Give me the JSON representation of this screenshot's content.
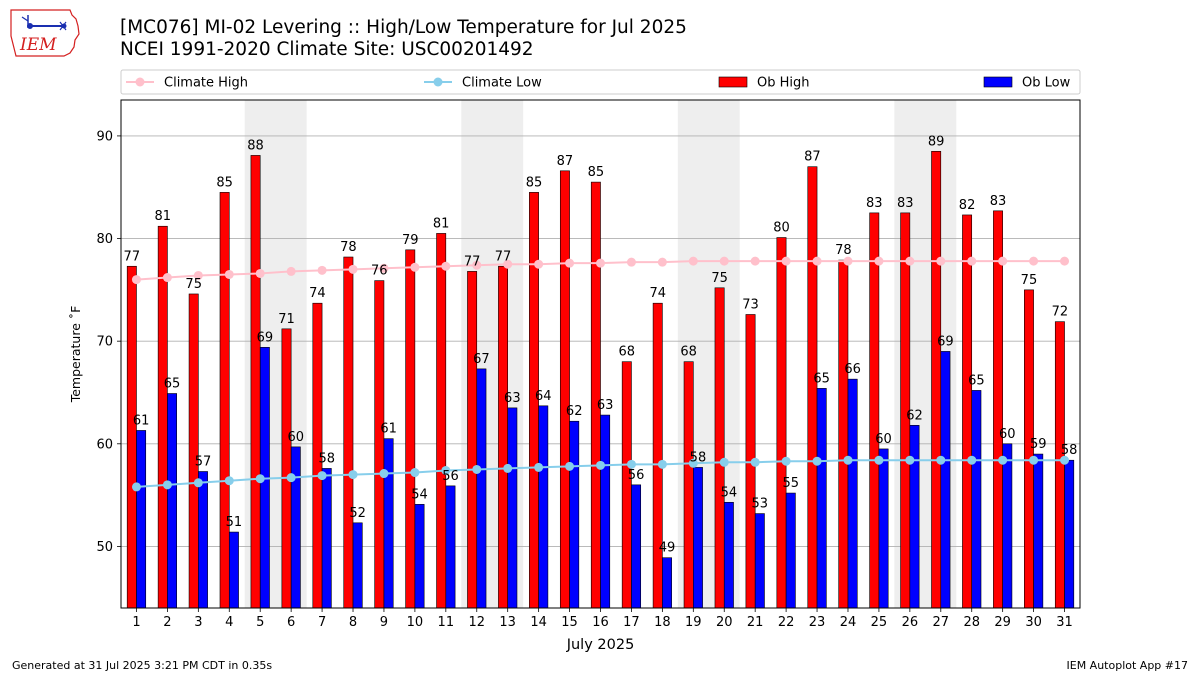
{
  "header": {
    "title": "[MC076] MI-02 Levering  :: High/Low Temperature for Jul 2025",
    "subtitle": "NCEI 1991-2020 Climate Site: USC00201492",
    "logo_text": "IEM"
  },
  "footer": {
    "left": "Generated at 31 Jul 2025 3:21 PM CDT in 0.35s",
    "right": "IEM Autoplot App #17"
  },
  "colors": {
    "ob_high": "#ff0000",
    "ob_low": "#0000ff",
    "climate_high": "#ffc0cb",
    "climate_low": "#87ceeb",
    "weekend_band": "#eeeeee",
    "grid": "#b0b0b0",
    "logo": "#d42020",
    "logo_icon": "#1a2fb0"
  },
  "chart_data": {
    "type": "bar",
    "xlabel": "July 2025",
    "ylabel": "Temperature ˚F",
    "ylim": [
      44,
      93.5
    ],
    "yticks": [
      50,
      60,
      70,
      80,
      90
    ],
    "grid": true,
    "legend_position": "top",
    "categories": [
      1,
      2,
      3,
      4,
      5,
      6,
      7,
      8,
      9,
      10,
      11,
      12,
      13,
      14,
      15,
      16,
      17,
      18,
      19,
      20,
      21,
      22,
      23,
      24,
      25,
      26,
      27,
      28,
      29,
      30,
      31
    ],
    "weekend_bands": [
      [
        5,
        6
      ],
      [
        12,
        13
      ],
      [
        19,
        20
      ],
      [
        26,
        27
      ]
    ],
    "series": [
      {
        "name": "Ob High",
        "type": "bar",
        "values": [
          77.3,
          81.2,
          74.6,
          84.5,
          88.1,
          71.2,
          73.7,
          78.2,
          75.9,
          78.9,
          80.5,
          76.8,
          77.3,
          84.5,
          86.6,
          85.5,
          68.0,
          73.7,
          68.0,
          75.2,
          72.6,
          80.1,
          87.0,
          77.9,
          82.5,
          82.5,
          88.5,
          82.3,
          82.7,
          75.0,
          71.9
        ],
        "labels": [
          "77",
          "81",
          "75",
          "85",
          "88",
          "71",
          "74",
          "78",
          "76",
          "79",
          "81",
          "77",
          "77",
          "85",
          "87",
          "85",
          "68",
          "74",
          "68",
          "75",
          "73",
          "80",
          "87",
          "78",
          "83",
          "83",
          "89",
          "82",
          "83",
          "75",
          "72"
        ]
      },
      {
        "name": "Ob Low",
        "type": "bar",
        "values": [
          61.3,
          64.9,
          57.3,
          51.4,
          69.4,
          59.7,
          57.6,
          52.3,
          60.5,
          54.1,
          55.9,
          67.3,
          63.5,
          63.7,
          62.2,
          62.8,
          56.0,
          48.9,
          57.7,
          54.3,
          53.2,
          55.2,
          65.4,
          66.3,
          59.5,
          61.8,
          69.0,
          65.2,
          60.0,
          59.0,
          58.4
        ],
        "labels": [
          "61",
          "65",
          "57",
          "51",
          "69",
          "60",
          "58",
          "52",
          "61",
          "54",
          "56",
          "67",
          "63",
          "64",
          "62",
          "63",
          "56",
          "49",
          "58",
          "54",
          "53",
          "55",
          "65",
          "66",
          "60",
          "62",
          "69",
          "65",
          "60",
          "59",
          "58"
        ]
      },
      {
        "name": "Climate High",
        "type": "line",
        "values": [
          76.0,
          76.2,
          76.4,
          76.5,
          76.6,
          76.8,
          76.9,
          77.0,
          77.1,
          77.2,
          77.3,
          77.4,
          77.5,
          77.5,
          77.6,
          77.6,
          77.7,
          77.7,
          77.8,
          77.8,
          77.8,
          77.8,
          77.8,
          77.8,
          77.8,
          77.8,
          77.8,
          77.8,
          77.8,
          77.8,
          77.8
        ]
      },
      {
        "name": "Climate Low",
        "type": "line",
        "values": [
          55.8,
          56.0,
          56.2,
          56.4,
          56.6,
          56.7,
          56.9,
          57.0,
          57.1,
          57.2,
          57.4,
          57.5,
          57.6,
          57.7,
          57.8,
          57.9,
          58.0,
          58.0,
          58.1,
          58.2,
          58.2,
          58.3,
          58.3,
          58.4,
          58.4,
          58.4,
          58.4,
          58.4,
          58.4,
          58.4,
          58.4
        ]
      }
    ]
  }
}
